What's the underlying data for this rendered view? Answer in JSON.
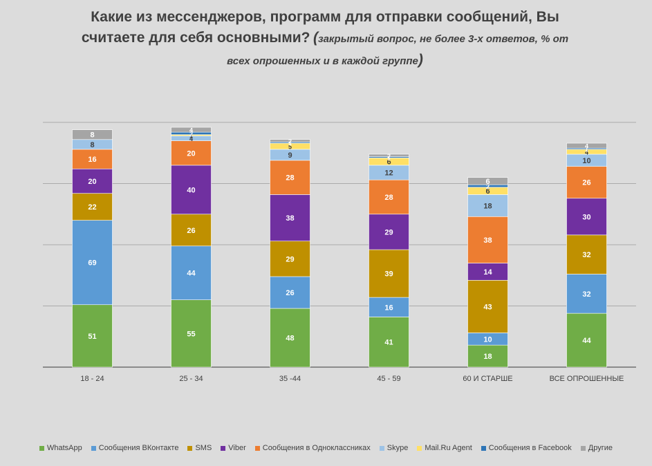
{
  "title": {
    "line1": "Какие из мессенджеров, программ для отправки сообщений, Вы",
    "line2_main": "считаете для себя основными?",
    "line2_paren": "(",
    "line2_note": "закрытый вопрос, не более 3-х ответов, % от",
    "line3_note": "всех опрошенных и в каждой группе",
    "line3_paren": ")"
  },
  "chart_data": {
    "type": "bar",
    "stacked": true,
    "categories": [
      "18 - 24",
      "25 - 34",
      "35 -44",
      "45 - 59",
      "60 И СТАРШЕ",
      "ВСЕ ОПРОШЕННЫЕ"
    ],
    "series": [
      {
        "name": "WhatsApp",
        "color": "#70ad47",
        "values": [
          51,
          55,
          48,
          41,
          18,
          44
        ]
      },
      {
        "name": "Сообщения ВКонтакте",
        "color": "#5b9bd5",
        "values": [
          69,
          44,
          26,
          16,
          10,
          32
        ]
      },
      {
        "name": "SMS",
        "color": "#bf9000",
        "values": [
          22,
          26,
          29,
          39,
          43,
          32
        ]
      },
      {
        "name": "Viber",
        "color": "#7030a0",
        "values": [
          20,
          40,
          38,
          29,
          14,
          30
        ]
      },
      {
        "name": "Сообщения в Одноклассниках",
        "color": "#ed7d31",
        "values": [
          16,
          20,
          28,
          28,
          38,
          26
        ]
      },
      {
        "name": "Skype",
        "color": "#9dc3e6",
        "values": [
          8,
          4,
          9,
          12,
          18,
          10
        ]
      },
      {
        "name": "Mail.Ru Agent",
        "color": "#ffe066",
        "values": [
          0,
          1,
          5,
          6,
          6,
          4
        ]
      },
      {
        "name": "Сообщения в Facebook",
        "color": "#2e75b6",
        "values": [
          0,
          2,
          1,
          1,
          2,
          1
        ]
      },
      {
        "name": "Другие",
        "color": "#a5a5a5",
        "values": [
          8,
          4,
          2,
          2,
          6,
          4
        ]
      }
    ],
    "ylim": [
      0,
      200
    ],
    "y_gridlines": [
      0,
      50,
      100,
      150,
      200
    ],
    "grid": true,
    "show_y_axis_labels": false,
    "legend_position": "bottom"
  }
}
